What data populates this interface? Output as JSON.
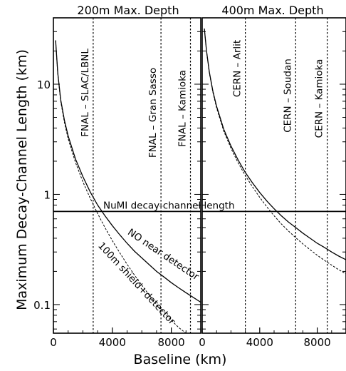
{
  "chart_data": [
    {
      "type": "line",
      "title": "200m Max. Depth",
      "xlabel": "Baseline  (km)",
      "ylabel": "Maximum  Decay-Channel  Length  (km)",
      "xlim": [
        0,
        10000
      ],
      "ylim": [
        0.055,
        40
      ],
      "yscale": "log",
      "xticks": [
        0,
        4000,
        8000
      ],
      "yticks": [
        0.1,
        1,
        10
      ],
      "ytick_labels": [
        "0.1",
        "1",
        "10"
      ],
      "grid": false,
      "series": [
        {
          "name": "NO near detector",
          "style": "solid",
          "x": [
            150,
            300,
            500,
            750,
            1000,
            1500,
            2000,
            2500,
            3000,
            3500,
            4000,
            4500,
            5000,
            5500,
            6000,
            6500,
            7000,
            7500,
            8000,
            8500,
            9000,
            9500,
            10000
          ],
          "y": [
            25,
            12.5,
            7.2,
            4.7,
            3.4,
            2.1,
            1.45,
            1.05,
            0.8,
            0.64,
            0.52,
            0.43,
            0.36,
            0.305,
            0.265,
            0.23,
            0.2,
            0.178,
            0.158,
            0.142,
            0.128,
            0.116,
            0.105
          ]
        },
        {
          "name": "100m shield+detector",
          "style": "dashed",
          "x": [
            150,
            300,
            500,
            750,
            1000,
            1500,
            2000,
            2500,
            3000,
            3500,
            4000,
            4500,
            5000,
            5500,
            6000,
            6500,
            7000,
            7500,
            8000,
            8500,
            9000
          ],
          "y": [
            25,
            12.3,
            7.0,
            4.5,
            3.2,
            1.95,
            1.3,
            0.92,
            0.67,
            0.5,
            0.38,
            0.295,
            0.232,
            0.185,
            0.15,
            0.122,
            0.1,
            0.085,
            0.072,
            0.062,
            0.055
          ]
        }
      ],
      "reference_lines": [
        {
          "kind": "horizontal",
          "y": 0.7,
          "label": "NuMI decay-channel length"
        },
        {
          "kind": "vertical",
          "x": 2700,
          "label": "FNAL – SLAC/LBNL"
        },
        {
          "kind": "vertical",
          "x": 7300,
          "label": "FNAL – Gran Sasso"
        },
        {
          "kind": "vertical",
          "x": 9300,
          "label": "FNAL – Kamioka"
        }
      ],
      "annotations": [
        "NO near detector",
        "100m shield+detector"
      ]
    },
    {
      "type": "line",
      "title": "400m Max. Depth",
      "xlim": [
        0,
        10000
      ],
      "ylim": [
        0.055,
        40
      ],
      "yscale": "log",
      "xticks": [
        0,
        4000,
        8000
      ],
      "grid": false,
      "series": [
        {
          "style": "solid",
          "x": [
            150,
            300,
            500,
            750,
            1000,
            1500,
            2000,
            2500,
            3000,
            3500,
            4000,
            4500,
            5000,
            5500,
            6000,
            6500,
            7000,
            7500,
            8000,
            8500,
            9000,
            9500,
            10000
          ],
          "y": [
            32,
            20,
            12.8,
            8.6,
            6.3,
            3.9,
            2.75,
            2.05,
            1.58,
            1.27,
            1.04,
            0.87,
            0.74,
            0.64,
            0.56,
            0.5,
            0.445,
            0.4,
            0.36,
            0.33,
            0.3,
            0.275,
            0.255
          ]
        },
        {
          "style": "dashed",
          "x": [
            150,
            300,
            500,
            750,
            1000,
            1500,
            2000,
            2500,
            3000,
            3500,
            4000,
            4500,
            5000,
            5500,
            6000,
            6500,
            7000,
            7500,
            8000,
            8500,
            9000,
            9500,
            10000
          ],
          "y": [
            32,
            19.8,
            12.6,
            8.4,
            6.1,
            3.75,
            2.62,
            1.93,
            1.48,
            1.17,
            0.94,
            0.77,
            0.64,
            0.54,
            0.465,
            0.405,
            0.355,
            0.315,
            0.28,
            0.252,
            0.228,
            0.207,
            0.19
          ]
        }
      ],
      "reference_lines": [
        {
          "kind": "horizontal",
          "y": 0.7
        },
        {
          "kind": "vertical",
          "x": 3000,
          "label": "CERN – Arlit"
        },
        {
          "kind": "vertical",
          "x": 6500,
          "label": "CERN – Soudan"
        },
        {
          "kind": "vertical",
          "x": 8700,
          "label": "CERN – Kamioka"
        }
      ]
    }
  ]
}
